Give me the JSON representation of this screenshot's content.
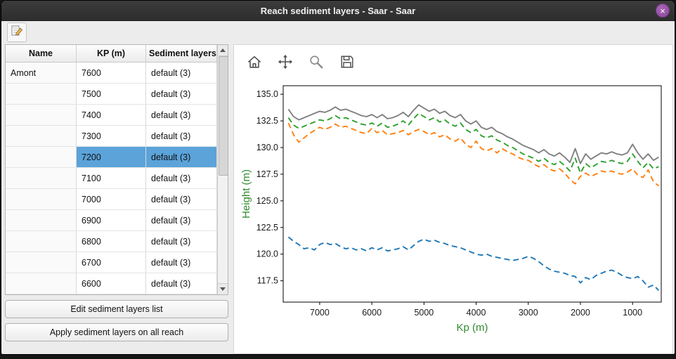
{
  "titlebar": {
    "title": "Reach sediment layers - Saar - Saar",
    "close_glyph": "×"
  },
  "toolbar": {
    "edit_icon": "edit-table-icon"
  },
  "table": {
    "columns": [
      "Name",
      "KP (m)",
      "Sediment layers"
    ],
    "selected_index": 4,
    "rows": [
      {
        "name": "Amont",
        "kp": "7600",
        "layers": "default (3)"
      },
      {
        "name": "",
        "kp": "7500",
        "layers": "default (3)"
      },
      {
        "name": "",
        "kp": "7400",
        "layers": "default (3)"
      },
      {
        "name": "",
        "kp": "7300",
        "layers": "default (3)"
      },
      {
        "name": "",
        "kp": "7200",
        "layers": "default (3)"
      },
      {
        "name": "",
        "kp": "7100",
        "layers": "default (3)"
      },
      {
        "name": "",
        "kp": "7000",
        "layers": "default (3)"
      },
      {
        "name": "",
        "kp": "6900",
        "layers": "default (3)"
      },
      {
        "name": "",
        "kp": "6800",
        "layers": "default (3)"
      },
      {
        "name": "",
        "kp": "6700",
        "layers": "default (3)"
      },
      {
        "name": "",
        "kp": "6600",
        "layers": "default (3)"
      }
    ]
  },
  "buttons": {
    "edit_layers": "Edit sediment layers list",
    "apply_all": "Apply sediment layers on all reach"
  },
  "plot_toolbar": {
    "icons": [
      "home-icon",
      "pan-icon",
      "zoom-icon",
      "save-icon"
    ]
  },
  "chart_data": {
    "type": "line",
    "title": "",
    "xlabel": "Kp (m)",
    "ylabel": "Height (m)",
    "axis_label_color": "#2e8b2e",
    "x_reversed": true,
    "xlim": [
      7700,
      450
    ],
    "ylim": [
      115.5,
      135.8
    ],
    "xticks": [
      7000,
      6000,
      5000,
      4000,
      3000,
      2000,
      1000
    ],
    "yticks": [
      135.0,
      132.5,
      130.0,
      127.5,
      125.0,
      122.5,
      120.0,
      117.5
    ],
    "legend": "none",
    "grid": false,
    "x": [
      7600,
      7500,
      7400,
      7300,
      7200,
      7100,
      7000,
      6900,
      6800,
      6700,
      6600,
      6500,
      6400,
      6300,
      6200,
      6100,
      6000,
      5900,
      5800,
      5700,
      5600,
      5500,
      5400,
      5300,
      5200,
      5100,
      5000,
      4900,
      4800,
      4700,
      4600,
      4500,
      4400,
      4300,
      4200,
      4100,
      4000,
      3900,
      3800,
      3700,
      3600,
      3500,
      3400,
      3300,
      3200,
      3100,
      3000,
      2900,
      2800,
      2700,
      2600,
      2500,
      2400,
      2300,
      2200,
      2100,
      2000,
      1900,
      1800,
      1700,
      1600,
      1500,
      1400,
      1300,
      1200,
      1100,
      1000,
      900,
      800,
      700,
      600,
      500
    ],
    "series": [
      {
        "name": "series-gray",
        "color": "#808080",
        "dash": false,
        "values": [
          133.6,
          132.9,
          132.6,
          132.8,
          133.0,
          133.2,
          133.4,
          133.3,
          133.5,
          133.8,
          133.5,
          133.6,
          133.4,
          133.2,
          133.0,
          132.9,
          133.1,
          132.8,
          133.1,
          132.7,
          132.8,
          133.0,
          133.3,
          132.9,
          133.5,
          134.0,
          133.7,
          133.4,
          133.6,
          133.2,
          133.4,
          133.0,
          132.8,
          133.1,
          132.5,
          132.2,
          132.5,
          131.9,
          131.7,
          131.9,
          131.5,
          131.3,
          131.0,
          130.8,
          130.5,
          130.2,
          130.0,
          129.8,
          129.5,
          129.8,
          129.4,
          129.2,
          129.5,
          129.1,
          128.6,
          129.9,
          128.5,
          129.4,
          128.9,
          129.2,
          129.5,
          129.4,
          129.6,
          129.4,
          129.3,
          129.5,
          130.3,
          129.5,
          128.9,
          129.4,
          128.8,
          129.1
        ]
      },
      {
        "name": "series-green",
        "color": "#2ca02c",
        "dash": true,
        "values": [
          132.8,
          132.1,
          131.8,
          132.0,
          132.2,
          132.4,
          132.6,
          132.5,
          132.7,
          133.0,
          132.7,
          132.8,
          132.6,
          132.4,
          132.2,
          132.1,
          132.3,
          132.0,
          132.3,
          131.9,
          132.0,
          132.2,
          132.5,
          132.1,
          132.7,
          133.2,
          132.9,
          132.6,
          132.8,
          132.4,
          132.6,
          132.2,
          132.0,
          132.3,
          131.7,
          131.4,
          131.7,
          131.1,
          130.9,
          131.1,
          130.7,
          130.5,
          130.2,
          130.0,
          129.7,
          129.4,
          129.2,
          129.0,
          128.7,
          129.0,
          128.6,
          128.4,
          128.7,
          128.3,
          127.8,
          129.0,
          127.6,
          128.5,
          128.1,
          128.4,
          128.7,
          128.6,
          128.8,
          128.6,
          128.5,
          128.7,
          129.4,
          128.7,
          128.1,
          128.6,
          128.0,
          128.2
        ]
      },
      {
        "name": "series-orange",
        "color": "#ff7f0e",
        "dash": true,
        "values": [
          132.3,
          131.2,
          130.5,
          130.9,
          131.3,
          131.6,
          131.9,
          131.7,
          131.9,
          132.2,
          131.9,
          132.0,
          131.8,
          131.6,
          131.4,
          131.3,
          131.8,
          131.4,
          131.6,
          131.2,
          131.3,
          131.4,
          131.6,
          131.2,
          131.5,
          131.7,
          131.5,
          131.2,
          131.4,
          131.0,
          131.2,
          130.8,
          130.6,
          130.9,
          130.3,
          130.0,
          130.6,
          129.9,
          129.7,
          129.9,
          129.5,
          129.9,
          129.6,
          129.4,
          129.1,
          128.9,
          128.8,
          128.5,
          128.2,
          128.4,
          128.0,
          127.8,
          128.0,
          127.6,
          127.0,
          126.6,
          127.3,
          127.6,
          127.3,
          127.5,
          127.8,
          127.7,
          127.8,
          127.6,
          127.5,
          127.7,
          128.0,
          127.4,
          127.2,
          127.9,
          126.8,
          126.4
        ]
      },
      {
        "name": "series-blue",
        "color": "#1f77b4",
        "dash": true,
        "values": [
          121.6,
          121.2,
          120.9,
          120.5,
          120.6,
          120.4,
          120.9,
          121.1,
          120.9,
          121.0,
          120.7,
          120.5,
          120.6,
          120.4,
          120.5,
          120.3,
          120.6,
          120.4,
          120.6,
          120.3,
          120.4,
          120.5,
          120.7,
          120.4,
          120.8,
          121.2,
          121.4,
          121.2,
          121.3,
          121.1,
          121.0,
          120.8,
          120.7,
          120.6,
          120.4,
          120.2,
          120.0,
          119.9,
          120.0,
          119.8,
          119.7,
          119.6,
          119.5,
          119.4,
          119.5,
          119.6,
          119.8,
          119.6,
          119.3,
          118.9,
          118.6,
          118.4,
          118.3,
          118.2,
          118.0,
          117.9,
          117.3,
          117.8,
          117.6,
          118.0,
          118.2,
          118.4,
          118.5,
          118.3,
          118.0,
          117.8,
          117.7,
          117.9,
          117.5,
          116.9,
          117.1,
          116.6
        ]
      }
    ]
  }
}
